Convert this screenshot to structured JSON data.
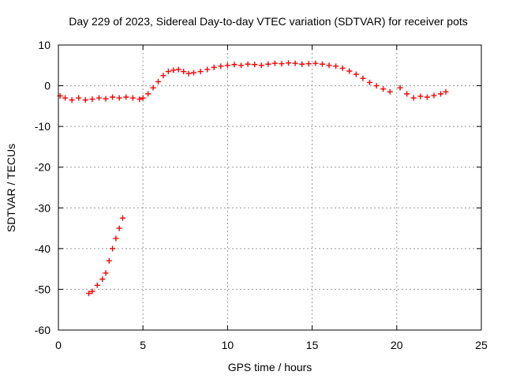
{
  "chart_data": {
    "type": "scatter",
    "title": "Day 229 of 2023, Sidereal Day-to-day VTEC variation (SDTVAR) for receiver pots",
    "xlabel": "GPS time / hours",
    "ylabel": "SDTVAR / TECUs",
    "xlim": [
      0,
      25
    ],
    "ylim": [
      -60,
      10
    ],
    "xticks": [
      0,
      5,
      10,
      15,
      20,
      25
    ],
    "yticks": [
      10,
      0,
      -10,
      -20,
      -30,
      -40,
      -50,
      -60
    ],
    "grid": true,
    "marker": "+",
    "series": [
      {
        "name": "pots",
        "color": "#ff0000",
        "x": [
          0.1,
          0.4,
          0.8,
          1.2,
          1.6,
          2.0,
          2.4,
          2.8,
          3.2,
          3.6,
          4.0,
          4.4,
          4.8,
          5.0,
          5.3,
          5.6,
          5.9,
          6.2,
          6.5,
          6.8,
          7.1,
          7.4,
          7.7,
          8.0,
          8.4,
          8.8,
          9.2,
          9.6,
          10.0,
          10.4,
          10.8,
          11.2,
          11.6,
          12.0,
          12.4,
          12.8,
          13.2,
          13.6,
          14.0,
          14.4,
          14.8,
          15.2,
          15.6,
          16.0,
          16.4,
          16.8,
          17.2,
          17.6,
          18.0,
          18.4,
          18.8,
          19.2,
          19.6,
          20.2,
          20.6,
          21.0,
          21.4,
          21.8,
          22.2,
          22.6,
          22.9,
          1.8,
          2.0,
          2.3,
          2.6,
          2.8,
          3.0,
          3.2,
          3.4,
          3.6,
          3.8
        ],
        "y": [
          -2.5,
          -3.0,
          -3.5,
          -3.0,
          -3.5,
          -3.3,
          -3.0,
          -3.2,
          -2.8,
          -3.0,
          -2.8,
          -3.0,
          -3.3,
          -3.0,
          -2.0,
          -0.5,
          1.0,
          2.5,
          3.5,
          3.8,
          4.0,
          3.5,
          3.0,
          3.2,
          3.5,
          4.0,
          4.5,
          4.8,
          5.0,
          5.2,
          5.0,
          5.3,
          5.2,
          5.0,
          5.3,
          5.5,
          5.4,
          5.6,
          5.5,
          5.3,
          5.4,
          5.5,
          5.3,
          5.0,
          4.8,
          4.3,
          3.6,
          2.8,
          1.8,
          0.8,
          0.0,
          -0.8,
          -1.5,
          -0.5,
          -2.0,
          -3.0,
          -2.6,
          -2.8,
          -2.4,
          -2.0,
          -1.5,
          -51.0,
          -50.5,
          -49.0,
          -47.5,
          -46.0,
          -43.0,
          -40.0,
          -37.5,
          -35.0,
          -32.5
        ]
      }
    ]
  }
}
